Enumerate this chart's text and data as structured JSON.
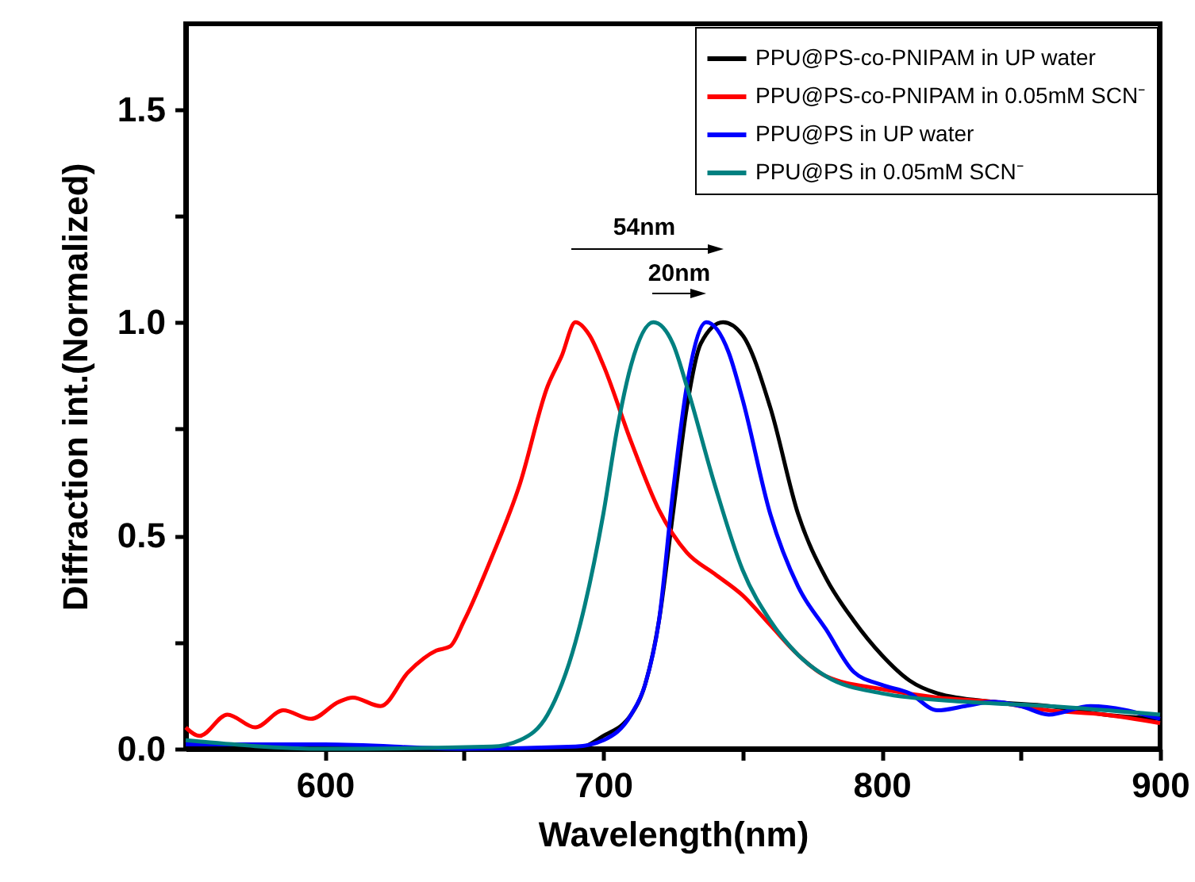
{
  "chart_data": {
    "type": "line",
    "xlabel": "Wavelength(nm)",
    "ylabel": "Diffraction int.(Normalized)",
    "xlim": [
      550,
      900
    ],
    "ylim": [
      0,
      1.7
    ],
    "xticks": [
      {
        "value": 600,
        "label": "600"
      },
      {
        "value": 650,
        "label": null
      },
      {
        "value": 700,
        "label": "700"
      },
      {
        "value": 750,
        "label": null
      },
      {
        "value": 800,
        "label": "800"
      },
      {
        "value": 850,
        "label": null
      },
      {
        "value": 900,
        "label": "900"
      }
    ],
    "yticks": [
      {
        "value": 0,
        "label": "0.0"
      },
      {
        "value": 0.25,
        "label": null
      },
      {
        "value": 0.5,
        "label": "0.5"
      },
      {
        "value": 0.75,
        "label": null
      },
      {
        "value": 1,
        "label": "1.0"
      },
      {
        "value": 1.25,
        "label": null
      },
      {
        "value": 1.5,
        "label": "1.5"
      }
    ],
    "legend": "top right",
    "grid": false,
    "marker": "none",
    "line_style": "solid",
    "annotations": [
      "54nm",
      "20nm"
    ],
    "series": [
      {
        "name": "PPU@PS-co-PNIPAM in UP water",
        "color": "#000000",
        "x": [
          550,
          600,
          650,
          690,
          700,
          710,
          715,
          720,
          725,
          730,
          735,
          743,
          750,
          760,
          770,
          780,
          790,
          800,
          810,
          820,
          840,
          860,
          880,
          900
        ],
        "values": [
          0.0,
          0.0,
          0.0,
          0.0,
          0.03,
          0.08,
          0.15,
          0.3,
          0.55,
          0.8,
          0.95,
          1.0,
          0.97,
          0.8,
          0.55,
          0.4,
          0.3,
          0.22,
          0.16,
          0.13,
          0.11,
          0.1,
          0.08,
          0.07
        ]
      },
      {
        "name": "PPU@PS-co-PNIPAM in 0.05mM SCN⁻",
        "color": "#ff0000",
        "x": [
          550,
          555,
          565,
          575,
          585,
          595,
          605,
          610,
          620,
          630,
          640,
          645,
          650,
          660,
          670,
          680,
          685,
          690,
          695,
          700,
          710,
          720,
          730,
          740,
          750,
          760,
          770,
          780,
          800,
          820,
          840,
          860,
          880,
          900
        ],
        "values": [
          0.05,
          0.03,
          0.08,
          0.05,
          0.09,
          0.07,
          0.11,
          0.12,
          0.1,
          0.18,
          0.23,
          0.24,
          0.3,
          0.45,
          0.62,
          0.85,
          0.92,
          1.0,
          0.97,
          0.9,
          0.72,
          0.56,
          0.46,
          0.41,
          0.36,
          0.29,
          0.22,
          0.17,
          0.14,
          0.12,
          0.11,
          0.09,
          0.08,
          0.06
        ]
      },
      {
        "name": "PPU@PS in UP water",
        "color": "#0000ff",
        "x": [
          550,
          600,
          650,
          690,
          700,
          710,
          715,
          720,
          725,
          730,
          737,
          745,
          750,
          760,
          770,
          780,
          790,
          800,
          810,
          820,
          830,
          840,
          850,
          860,
          875,
          900
        ],
        "values": [
          0.01,
          0.01,
          0.0,
          0.005,
          0.02,
          0.08,
          0.15,
          0.3,
          0.6,
          0.85,
          1.0,
          0.93,
          0.82,
          0.55,
          0.38,
          0.28,
          0.18,
          0.15,
          0.13,
          0.09,
          0.1,
          0.11,
          0.1,
          0.08,
          0.1,
          0.07
        ]
      },
      {
        "name": "PPU@PS in 0.05mM SCN⁻",
        "color": "#008080",
        "x": [
          550,
          600,
          660,
          670,
          680,
          690,
          700,
          705,
          710,
          718,
          725,
          730,
          740,
          750,
          760,
          770,
          780,
          800,
          830,
          860,
          900
        ],
        "values": [
          0.02,
          0.0,
          0.005,
          0.02,
          0.08,
          0.25,
          0.55,
          0.75,
          0.9,
          1.0,
          0.95,
          0.85,
          0.62,
          0.42,
          0.3,
          0.22,
          0.17,
          0.13,
          0.11,
          0.1,
          0.08
        ]
      }
    ]
  }
}
